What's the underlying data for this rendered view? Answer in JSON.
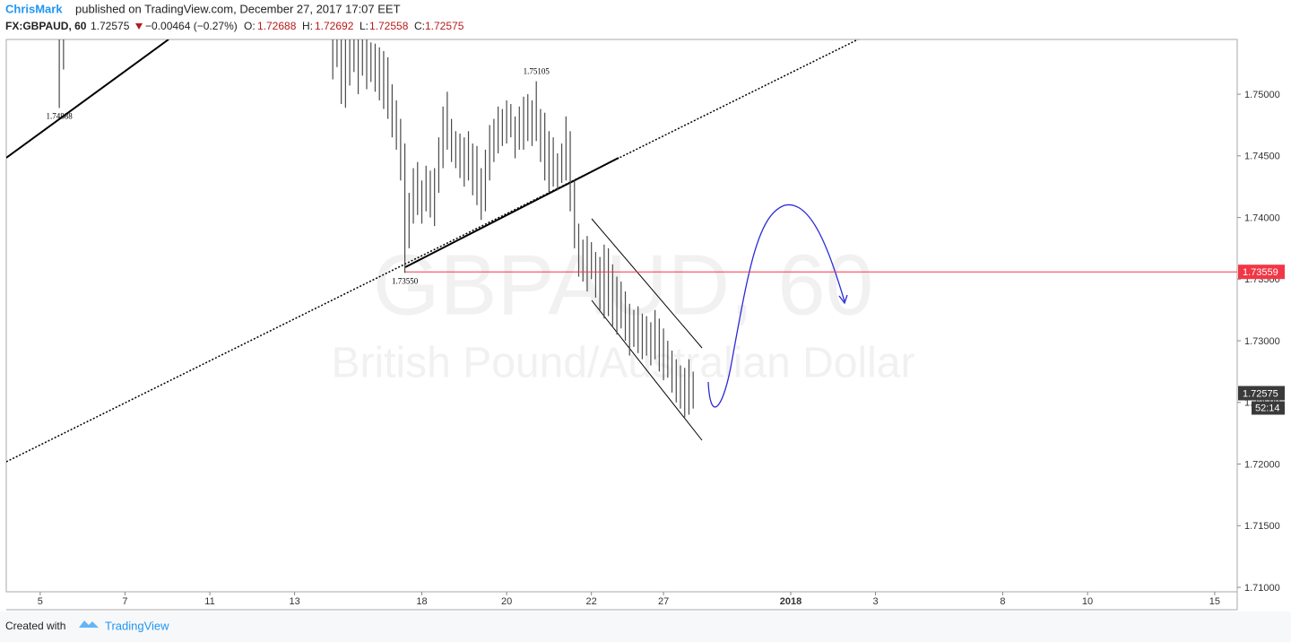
{
  "chart_data": {
    "type": "ohlc",
    "author": "ChrisMark",
    "published": "published on TradingView.com, December 27, 2017 17:07 EET",
    "symbol": "FX:GBPAUD, 60",
    "close": 1.72575,
    "change": "−0.00464 (−0.27%)",
    "o_label": "O:",
    "open": 1.72688,
    "h_label": "H:",
    "high_price": 1.72692,
    "l_label": "L:",
    "low_price": 1.72558,
    "c_label": "C:",
    "watermark": "GBPAUD, 60",
    "watermark_sub": "British Pound/Australian Dollar",
    "countdown": "52:14",
    "level": 1.73559,
    "color": "#4a4a4a",
    "level_color": "#f23645",
    "grid": false,
    "x": [
      1.25,
      1.35,
      7.7,
      7.8,
      7.9,
      8.0,
      8.1,
      8.2,
      8.3,
      8.4,
      8.5,
      8.6,
      8.7,
      8.8,
      8.9,
      9.0,
      9.1,
      9.2,
      9.3,
      9.4,
      9.5,
      9.6,
      9.7,
      9.8,
      9.9,
      10.0,
      10.1,
      10.2,
      10.3,
      10.4,
      10.5,
      10.6,
      10.7,
      10.8,
      10.9,
      11.0,
      11.1,
      11.2,
      11.3,
      11.4,
      11.5,
      11.6,
      11.7,
      11.8,
      11.9,
      12.0,
      12.1,
      12.2,
      12.3,
      12.4,
      12.5,
      12.6,
      12.7,
      12.8,
      12.9,
      13.0,
      13.1,
      13.2,
      13.3,
      13.4,
      13.5,
      13.6,
      13.7,
      13.8,
      13.9,
      14.0,
      14.1,
      14.2,
      14.3,
      14.4,
      14.5,
      14.6,
      14.7,
      14.8,
      14.9,
      15.0,
      15.1,
      15.2,
      15.3,
      15.4,
      15.5,
      15.6,
      15.7,
      15.8,
      15.9,
      16.0,
      16.1,
      16.2
    ],
    "high": [
      1.756,
      1.756,
      1.755,
      1.7552,
      1.7549,
      1.7548,
      1.7555,
      1.7551,
      1.7553,
      1.7546,
      1.7545,
      1.7542,
      1.7541,
      1.7538,
      1.7535,
      1.753,
      1.7508,
      1.7495,
      1.748,
      1.746,
      1.742,
      1.744,
      1.7445,
      1.743,
      1.7442,
      1.7438,
      1.744,
      1.7465,
      1.749,
      1.7502,
      1.748,
      1.747,
      1.7468,
      1.7465,
      1.747,
      1.746,
      1.7458,
      1.744,
      1.7455,
      1.7475,
      1.748,
      1.749,
      1.7488,
      1.7495,
      1.7492,
      1.7482,
      1.749,
      1.7498,
      1.75,
      1.7495,
      1.75105,
      1.7488,
      1.7485,
      1.747,
      1.7465,
      1.7452,
      1.746,
      1.7482,
      1.747,
      1.743,
      1.7395,
      1.7382,
      1.7385,
      1.738,
      1.7372,
      1.7368,
      1.7378,
      1.7375,
      1.7362,
      1.7352,
      1.7348,
      1.734,
      1.733,
      1.7325,
      1.7328,
      1.7322,
      1.732,
      1.7315,
      1.7325,
      1.7318,
      1.731,
      1.73,
      1.7292,
      1.7285,
      1.728,
      1.7278,
      1.7285,
      1.7275
    ],
    "low": [
      1.74888,
      1.752,
      1.7512,
      1.7522,
      1.7492,
      1.7489,
      1.7507,
      1.7518,
      1.75,
      1.7515,
      1.7504,
      1.751,
      1.7502,
      1.7495,
      1.7488,
      1.748,
      1.7465,
      1.7455,
      1.743,
      1.7355,
      1.7375,
      1.7395,
      1.7402,
      1.7395,
      1.7405,
      1.74,
      1.7393,
      1.742,
      1.744,
      1.7455,
      1.7445,
      1.744,
      1.7432,
      1.7425,
      1.743,
      1.7418,
      1.741,
      1.7398,
      1.7405,
      1.743,
      1.7445,
      1.7452,
      1.7458,
      1.746,
      1.7465,
      1.7448,
      1.7455,
      1.7455,
      1.7462,
      1.7458,
      1.7462,
      1.7445,
      1.743,
      1.742,
      1.7425,
      1.7422,
      1.7428,
      1.743,
      1.7405,
      1.7375,
      1.7352,
      1.7348,
      1.734,
      1.735,
      1.7335,
      1.7325,
      1.7318,
      1.732,
      1.7312,
      1.7305,
      1.731,
      1.73,
      1.7288,
      1.7295,
      1.729,
      1.7285,
      1.7288,
      1.728,
      1.7285,
      1.7275,
      1.7268,
      1.727,
      1.7258,
      1.725,
      1.7245,
      1.7238,
      1.724,
      1.7245
    ],
    "annotations": [
      {
        "x": 1.25,
        "value": 1.74888,
        "label": "1.74888",
        "side": "below"
      },
      {
        "x": 12.5,
        "value": 1.75105,
        "label": "1.75105",
        "side": "above"
      },
      {
        "x": 9.4,
        "value": 1.7355,
        "label": "1.73550",
        "side": "below"
      }
    ],
    "xlim": [
      0,
      29.03
    ],
    "xticks": [
      {
        "value": 0.8,
        "label": "5"
      },
      {
        "value": 2.8,
        "label": "7"
      },
      {
        "value": 4.8,
        "label": "11"
      },
      {
        "value": 6.8,
        "label": "13"
      },
      {
        "value": 9.8,
        "label": "18"
      },
      {
        "value": 11.8,
        "label": "20"
      },
      {
        "value": 13.8,
        "label": "22"
      },
      {
        "value": 15.5,
        "label": "27"
      },
      {
        "value": 18.5,
        "label": "2018"
      },
      {
        "value": 20.5,
        "label": "3"
      },
      {
        "value": 23.5,
        "label": "8"
      },
      {
        "value": 25.5,
        "label": "10"
      },
      {
        "value": 28.5,
        "label": "15"
      }
    ],
    "ylim": [
      1.70964,
      1.75444
    ],
    "yticks": [
      {
        "value": 1.71,
        "label": "1.71000"
      },
      {
        "value": 1.715,
        "label": "1.71500"
      },
      {
        "value": 1.72,
        "label": "1.72000"
      },
      {
        "value": 1.725,
        "label": "1.72500"
      },
      {
        "value": 1.73,
        "label": "1.73000"
      },
      {
        "value": 1.735,
        "label": "1.73500"
      },
      {
        "value": 1.74,
        "label": "1.74000"
      },
      {
        "value": 1.745,
        "label": "1.74500"
      },
      {
        "value": 1.75,
        "label": "1.75000"
      }
    ],
    "footer": "Created with",
    "brand": "TradingView"
  }
}
